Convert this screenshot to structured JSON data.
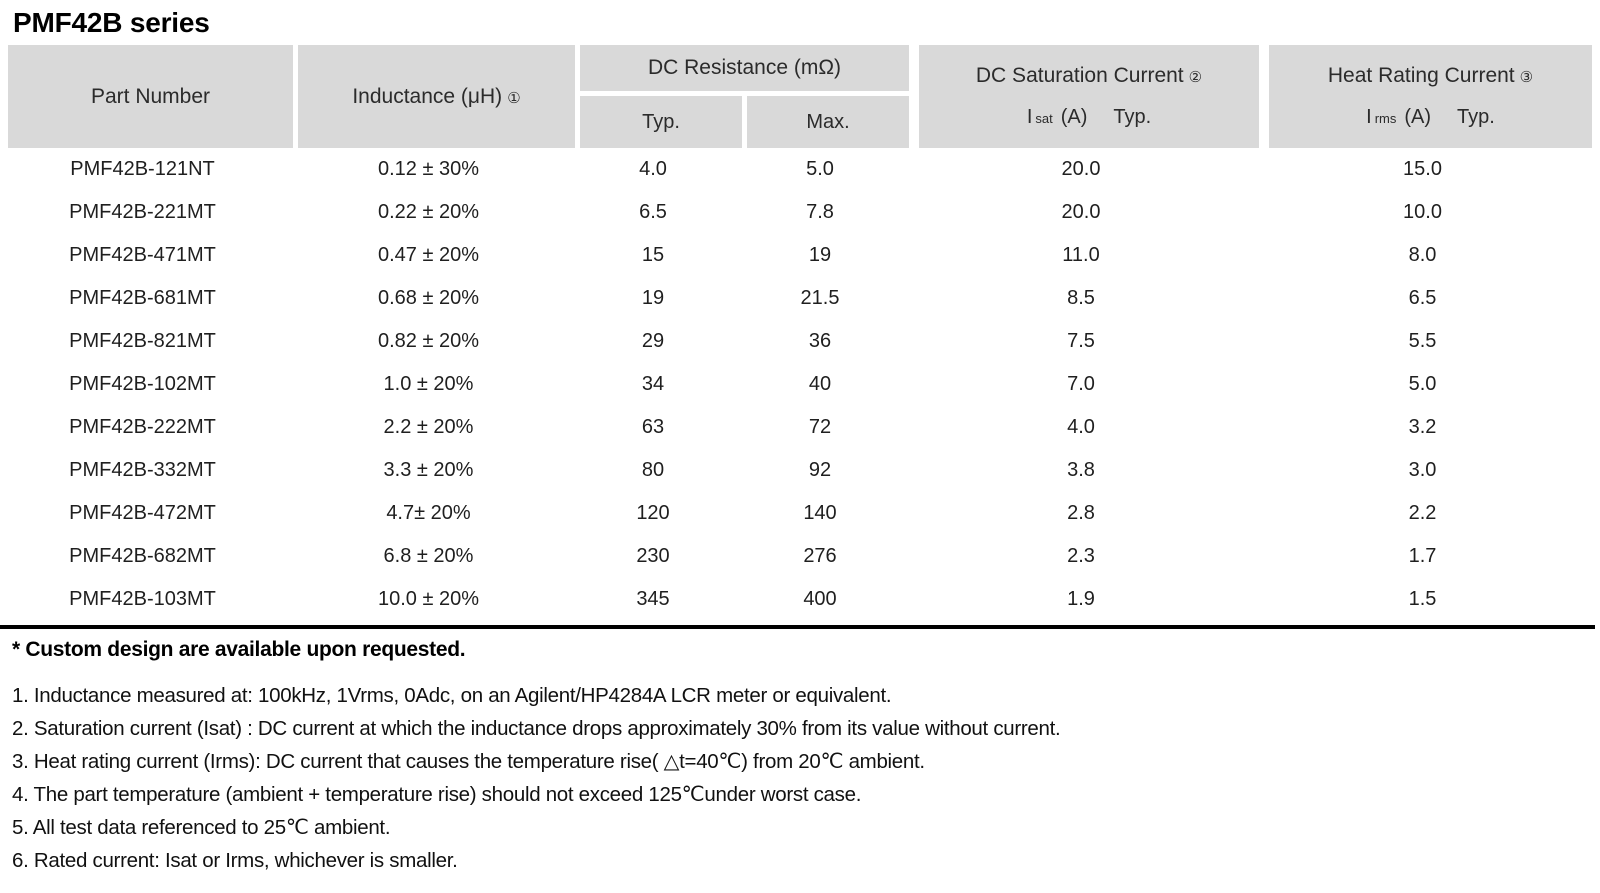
{
  "page": {
    "title": "PMF42B series"
  },
  "colors": {
    "header_bg": "#d9d9d9",
    "text": "#1f1f1f",
    "rule": "#000000"
  },
  "table": {
    "headers": {
      "part_number": "Part Number",
      "inductance_label": "Inductance (μH)",
      "inductance_note": "①",
      "dc_resistance_label": "DC Resistance (mΩ)",
      "typ_label": "Typ.",
      "max_label": "Max.",
      "saturation_label": "DC Saturation Current",
      "saturation_note": "②",
      "saturation_symbol": "I",
      "saturation_sub": "sat",
      "saturation_unit": "(A)",
      "saturation_typ": "Typ.",
      "heat_label": "Heat Rating Current",
      "heat_note": "③",
      "heat_symbol": "I",
      "heat_sub": "rms",
      "heat_unit": "(A)",
      "heat_typ": "Typ."
    },
    "rows": [
      {
        "part": "PMF42B-121NT",
        "inductance": "0.12 ± 30%",
        "dcr_typ": "4.0",
        "dcr_max": "5.0",
        "isat": "20.0",
        "irms": "15.0"
      },
      {
        "part": "PMF42B-221MT",
        "inductance": "0.22 ± 20%",
        "dcr_typ": "6.5",
        "dcr_max": "7.8",
        "isat": "20.0",
        "irms": "10.0"
      },
      {
        "part": "PMF42B-471MT",
        "inductance": "0.47 ± 20%",
        "dcr_typ": "15",
        "dcr_max": "19",
        "isat": "11.0",
        "irms": "8.0"
      },
      {
        "part": "PMF42B-681MT",
        "inductance": "0.68 ± 20%",
        "dcr_typ": "19",
        "dcr_max": "21.5",
        "isat": "8.5",
        "irms": "6.5"
      },
      {
        "part": "PMF42B-821MT",
        "inductance": "0.82 ± 20%",
        "dcr_typ": "29",
        "dcr_max": "36",
        "isat": "7.5",
        "irms": "5.5"
      },
      {
        "part": "PMF42B-102MT",
        "inductance": "1.0 ± 20%",
        "dcr_typ": "34",
        "dcr_max": "40",
        "isat": "7.0",
        "irms": "5.0"
      },
      {
        "part": "PMF42B-222MT",
        "inductance": "2.2 ± 20%",
        "dcr_typ": "63",
        "dcr_max": "72",
        "isat": "4.0",
        "irms": "3.2"
      },
      {
        "part": "PMF42B-332MT",
        "inductance": "3.3 ± 20%",
        "dcr_typ": "80",
        "dcr_max": "92",
        "isat": "3.8",
        "irms": "3.0"
      },
      {
        "part": "PMF42B-472MT",
        "inductance": "4.7± 20%",
        "dcr_typ": "120",
        "dcr_max": "140",
        "isat": "2.8",
        "irms": "2.2"
      },
      {
        "part": "PMF42B-682MT",
        "inductance": "6.8 ± 20%",
        "dcr_typ": "230",
        "dcr_max": "276",
        "isat": "2.3",
        "irms": "1.7"
      },
      {
        "part": "PMF42B-103MT",
        "inductance": "10.0 ± 20%",
        "dcr_typ": "345",
        "dcr_max": "400",
        "isat": "1.9",
        "irms": "1.5"
      }
    ]
  },
  "notes": {
    "custom_note": "* Custom design are available upon requested.",
    "items": [
      "1. Inductance measured at: 100kHz, 1Vrms, 0Adc, on an Agilent/HP4284A LCR meter or equivalent.",
      "2. Saturation current (Isat) : DC current at which the inductance drops approximately 30% from its value without current.",
      "3. Heat rating current (Irms): DC current that causes the temperature rise( △t=40℃) from 20℃ ambient.",
      "4. The part temperature (ambient + temperature rise) should not exceed 125℃under worst case.",
      "5. All test data referenced to 25℃ ambient.",
      "6. Rated current: Isat or Irms, whichever is smaller."
    ]
  }
}
